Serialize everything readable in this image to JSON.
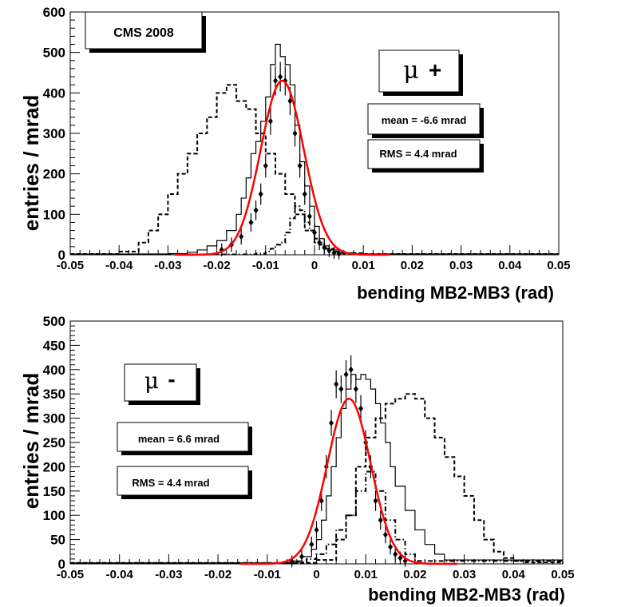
{
  "charts": [
    {
      "id": "top",
      "label_box": "CMS 2008",
      "charge_symbol": "μ",
      "charge_sign": "+",
      "mean_text": "mean = -6.6 mrad",
      "rms_text": "RMS = 4.4 mrad",
      "xlabel": "bending MB2-MB3 (rad)",
      "ylabel": "entries / mrad"
    },
    {
      "id": "bottom",
      "charge_symbol": "μ",
      "charge_sign": "-",
      "mean_text": "mean = 6.6 mrad",
      "rms_text": "RMS = 4.4 mrad",
      "xlabel": "bending MB2-MB3 (rad)",
      "ylabel": "entries / mrad"
    }
  ],
  "chart_data": [
    {
      "type": "line",
      "xlabel": "bending MB2-MB3 (rad)",
      "ylabel": "entries / mrad",
      "xlim": [
        -0.05,
        0.05
      ],
      "ylim": [
        0,
        600
      ],
      "xticks": [
        -0.05,
        -0.04,
        -0.03,
        -0.02,
        -0.01,
        0,
        0.01,
        0.02,
        0.03,
        0.04,
        0.05
      ],
      "xtick_labels": [
        "-0.05",
        "-0.04",
        "-0.03",
        "-0.02",
        "-0.01",
        "0",
        "0.01",
        "0.02",
        "0.03",
        "0.04",
        "0.05"
      ],
      "yticks": [
        0,
        100,
        200,
        300,
        400,
        500,
        600
      ],
      "ytick_labels": [
        "0",
        "100",
        "200",
        "300",
        "400",
        "500",
        "600"
      ],
      "grid": false,
      "series": [
        {
          "style": "solid-step",
          "x": [
            -0.05,
            -0.03,
            -0.026,
            -0.024,
            -0.022,
            -0.02,
            -0.018,
            -0.016,
            -0.015,
            -0.014,
            -0.013,
            -0.012,
            -0.011,
            -0.01,
            -0.009,
            -0.008,
            -0.007,
            -0.006,
            -0.005,
            -0.004,
            -0.003,
            -0.002,
            -0.001,
            0,
            0.001,
            0.002,
            0.003,
            0.005,
            0.008,
            0.05
          ],
          "values": [
            2,
            3,
            6,
            12,
            22,
            35,
            60,
            100,
            140,
            190,
            250,
            280,
            330,
            390,
            470,
            520,
            490,
            470,
            420,
            320,
            230,
            170,
            120,
            70,
            40,
            22,
            12,
            5,
            2,
            2
          ]
        },
        {
          "style": "dashed-step",
          "x": [
            -0.05,
            -0.04,
            -0.036,
            -0.034,
            -0.032,
            -0.03,
            -0.028,
            -0.026,
            -0.024,
            -0.022,
            -0.02,
            -0.018,
            -0.016,
            -0.014,
            -0.012,
            -0.01,
            -0.008,
            -0.006,
            -0.004,
            -0.002,
            0,
            0.002,
            0.004,
            0.006,
            0.01,
            0.05
          ],
          "values": [
            2,
            8,
            30,
            60,
            100,
            150,
            200,
            250,
            300,
            340,
            400,
            420,
            380,
            360,
            300,
            250,
            200,
            150,
            100,
            60,
            30,
            15,
            8,
            4,
            2,
            2
          ]
        },
        {
          "style": "dashdot-step",
          "x": [
            -0.05,
            -0.012,
            -0.01,
            -0.009,
            -0.008,
            -0.007,
            -0.006,
            -0.005,
            -0.004,
            -0.003,
            -0.002,
            -0.001,
            0,
            0.001,
            0.002,
            0.003,
            0.004,
            0.005,
            0.006,
            0.008,
            0.05
          ],
          "values": [
            1,
            3,
            8,
            15,
            25,
            30,
            55,
            90,
            120,
            110,
            80,
            60,
            40,
            25,
            15,
            10,
            6,
            4,
            2,
            1,
            1
          ]
        },
        {
          "style": "points",
          "x": [
            -0.019,
            -0.017,
            -0.015,
            -0.013,
            -0.012,
            -0.011,
            -0.01,
            -0.009,
            -0.008,
            -0.007,
            -0.006,
            -0.005,
            -0.004,
            -0.003,
            -0.002,
            -0.001,
            0,
            0.001,
            0.002,
            0.003,
            0.004,
            0.005
          ],
          "values": [
            12,
            25,
            45,
            80,
            110,
            150,
            220,
            330,
            430,
            440,
            430,
            380,
            300,
            220,
            150,
            95,
            55,
            30,
            18,
            10,
            5,
            3
          ]
        },
        {
          "style": "gaussian-fit",
          "color": "#ff0000",
          "mean": -0.0066,
          "sigma": 0.0044,
          "amplitude": 430
        }
      ]
    },
    {
      "type": "line",
      "xlabel": "bending MB2-MB3 (rad)",
      "ylabel": "entries / mrad",
      "xlim": [
        -0.05,
        0.05
      ],
      "ylim": [
        0,
        500
      ],
      "xticks": [
        -0.05,
        -0.04,
        -0.03,
        -0.02,
        -0.01,
        0,
        0.01,
        0.02,
        0.03,
        0.04,
        0.05
      ],
      "xtick_labels": [
        "-0.05",
        "-0.04",
        "-0.03",
        "-0.02",
        "-0.01",
        "0",
        "0.01",
        "0.02",
        "0.03",
        "0.04",
        "0.05"
      ],
      "yticks": [
        0,
        50,
        100,
        150,
        200,
        250,
        300,
        350,
        400,
        450,
        500
      ],
      "ytick_labels": [
        "0",
        "50",
        "100",
        "150",
        "200",
        "250",
        "300",
        "350",
        "400",
        "450",
        "500"
      ],
      "grid": false,
      "series": [
        {
          "style": "solid-step",
          "x": [
            -0.05,
            -0.005,
            -0.003,
            -0.001,
            0,
            0.001,
            0.002,
            0.003,
            0.004,
            0.005,
            0.006,
            0.007,
            0.008,
            0.009,
            0.01,
            0.011,
            0.012,
            0.013,
            0.014,
            0.015,
            0.016,
            0.018,
            0.02,
            0.022,
            0.024,
            0.026,
            0.05
          ],
          "values": [
            2,
            6,
            15,
            30,
            50,
            90,
            140,
            200,
            260,
            320,
            360,
            390,
            380,
            390,
            380,
            360,
            330,
            290,
            250,
            200,
            160,
            110,
            70,
            40,
            20,
            8,
            2
          ]
        },
        {
          "style": "dashed-step",
          "x": [
            -0.05,
            0.0,
            0.004,
            0.006,
            0.008,
            0.01,
            0.012,
            0.014,
            0.016,
            0.018,
            0.02,
            0.022,
            0.024,
            0.026,
            0.028,
            0.03,
            0.032,
            0.034,
            0.036,
            0.038,
            0.04,
            0.042,
            0.05
          ],
          "values": [
            2,
            8,
            50,
            100,
            200,
            260,
            300,
            330,
            340,
            350,
            340,
            300,
            260,
            220,
            180,
            140,
            90,
            50,
            25,
            12,
            6,
            3,
            2
          ]
        },
        {
          "style": "dashdot-step",
          "x": [
            -0.05,
            -0.004,
            -0.002,
            0,
            0.002,
            0.004,
            0.006,
            0.008,
            0.01,
            0.012,
            0.014,
            0.016,
            0.018,
            0.02,
            0.05
          ],
          "values": [
            1,
            4,
            10,
            20,
            40,
            70,
            100,
            150,
            190,
            150,
            90,
            50,
            20,
            6,
            1
          ]
        },
        {
          "style": "points",
          "x": [
            -0.005,
            -0.003,
            -0.001,
            0,
            0.001,
            0.002,
            0.003,
            0.004,
            0.005,
            0.006,
            0.007,
            0.008,
            0.009,
            0.01,
            0.011,
            0.012,
            0.013,
            0.014,
            0.015,
            0.016,
            0.017,
            0.018
          ],
          "values": [
            5,
            15,
            40,
            70,
            130,
            200,
            290,
            370,
            360,
            390,
            400,
            360,
            320,
            250,
            200,
            130,
            90,
            60,
            35,
            20,
            12,
            6
          ]
        },
        {
          "style": "gaussian-fit",
          "color": "#ff0000",
          "mean": 0.0066,
          "sigma": 0.0044,
          "amplitude": 340
        }
      ]
    }
  ]
}
